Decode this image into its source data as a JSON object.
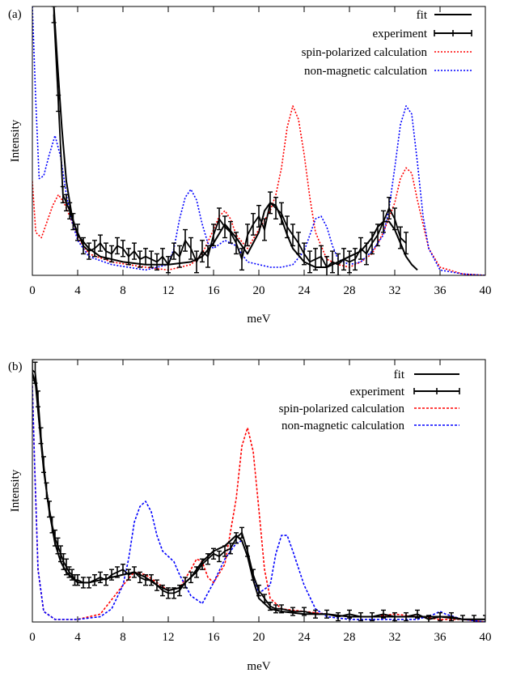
{
  "colors": {
    "fit": "#000000",
    "experiment": "#000000",
    "spin": "#ff0000",
    "nonmag": "#0000ff"
  },
  "chart_data": [
    {
      "type": "line",
      "panel_label": "(a)",
      "xlabel": "meV",
      "ylabel": "Intensity",
      "xlim": [
        0,
        40
      ],
      "ylim": [
        0,
        1
      ],
      "x_ticks": [
        "0",
        "4",
        "8",
        "12",
        "16",
        "20",
        "24",
        "28",
        "32",
        "36",
        "40"
      ],
      "y_ticks": [],
      "grid": false,
      "legend_position": "top-right",
      "series": [
        {
          "name": "fit",
          "style": "solid",
          "color": "#000000",
          "x": [
            1.9,
            2.2,
            2.6,
            3,
            3.5,
            4,
            5,
            6,
            8,
            10,
            12,
            14,
            15,
            16,
            17,
            18,
            19,
            20,
            20.5,
            21,
            21.5,
            22,
            22.5,
            23,
            24,
            25,
            26,
            27,
            28,
            29,
            30,
            30.5,
            31,
            31.5,
            32,
            32.5,
            33,
            33.5,
            34
          ],
          "y": [
            1.0,
            0.8,
            0.55,
            0.35,
            0.22,
            0.15,
            0.1,
            0.07,
            0.05,
            0.04,
            0.04,
            0.05,
            0.07,
            0.12,
            0.19,
            0.14,
            0.08,
            0.16,
            0.24,
            0.27,
            0.26,
            0.21,
            0.15,
            0.1,
            0.05,
            0.03,
            0.03,
            0.05,
            0.07,
            0.09,
            0.14,
            0.18,
            0.2,
            0.2,
            0.17,
            0.12,
            0.07,
            0.04,
            0.02
          ]
        },
        {
          "name": "experiment",
          "style": "errorbars",
          "color": "#000000",
          "x": [
            1.9,
            2.3,
            2.7,
            3.0,
            3.3,
            3.6,
            4.0,
            4.5,
            5.0,
            5.5,
            6.0,
            6.5,
            7.0,
            7.5,
            8.0,
            8.5,
            9.0,
            9.5,
            10.0,
            10.5,
            11.0,
            11.5,
            12.0,
            12.5,
            13.0,
            13.5,
            14.0,
            14.5,
            15.0,
            15.5,
            16.0,
            16.5,
            17.0,
            17.5,
            18.0,
            18.5,
            19.0,
            19.5,
            20.0,
            20.5,
            21.0,
            21.5,
            22.0,
            22.5,
            23.0,
            23.5,
            24.0,
            24.5,
            25.0,
            25.5,
            26.0,
            26.5,
            27.0,
            27.5,
            28.0,
            28.5,
            29.0,
            29.5,
            30.0,
            30.5,
            31.0,
            31.5,
            32.0,
            32.5,
            33.0
          ],
          "y": [
            0.97,
            0.64,
            0.3,
            0.27,
            0.24,
            0.2,
            0.16,
            0.11,
            0.09,
            0.1,
            0.12,
            0.09,
            0.08,
            0.11,
            0.1,
            0.07,
            0.09,
            0.06,
            0.07,
            0.06,
            0.05,
            0.07,
            0.04,
            0.09,
            0.07,
            0.13,
            0.1,
            0.05,
            0.09,
            0.07,
            0.15,
            0.21,
            0.18,
            0.16,
            0.12,
            0.06,
            0.15,
            0.19,
            0.22,
            0.17,
            0.27,
            0.25,
            0.23,
            0.18,
            0.15,
            0.12,
            0.08,
            0.05,
            0.06,
            0.07,
            0.03,
            0.05,
            0.04,
            0.06,
            0.05,
            0.06,
            0.1,
            0.08,
            0.12,
            0.15,
            0.2,
            0.25,
            0.21,
            0.14,
            0.12
          ],
          "err": [
            0.03,
            0.03,
            0.03,
            0.03,
            0.03,
            0.03,
            0.03,
            0.03,
            0.03,
            0.03,
            0.03,
            0.03,
            0.03,
            0.03,
            0.03,
            0.03,
            0.03,
            0.03,
            0.03,
            0.03,
            0.03,
            0.03,
            0.03,
            0.03,
            0.04,
            0.04,
            0.04,
            0.04,
            0.04,
            0.04,
            0.04,
            0.04,
            0.04,
            0.04,
            0.04,
            0.04,
            0.04,
            0.04,
            0.04,
            0.04,
            0.04,
            0.04,
            0.04,
            0.04,
            0.04,
            0.04,
            0.04,
            0.04,
            0.04,
            0.04,
            0.04,
            0.04,
            0.04,
            0.04,
            0.04,
            0.04,
            0.04,
            0.04,
            0.04,
            0.04,
            0.04,
            0.04,
            0.04,
            0.04,
            0.04
          ]
        },
        {
          "name": "spin-polarized calculation",
          "style": "dotted",
          "color": "#ff0000",
          "x": [
            0,
            0.3,
            0.8,
            1.3,
            1.8,
            2.3,
            2.8,
            3.3,
            4,
            5,
            7,
            10,
            12,
            14,
            15,
            16,
            16.5,
            17,
            17.5,
            18,
            19,
            20,
            21,
            21.5,
            22,
            22.5,
            23,
            23.5,
            24,
            24.5,
            25,
            26,
            27,
            28,
            29,
            30,
            31,
            32,
            32.5,
            33,
            33.5,
            34,
            35,
            36,
            38,
            40
          ],
          "y": [
            0.35,
            0.16,
            0.14,
            0.2,
            0.26,
            0.3,
            0.27,
            0.22,
            0.14,
            0.08,
            0.05,
            0.03,
            0.02,
            0.04,
            0.08,
            0.17,
            0.22,
            0.24,
            0.21,
            0.15,
            0.1,
            0.17,
            0.24,
            0.3,
            0.4,
            0.55,
            0.63,
            0.58,
            0.45,
            0.29,
            0.16,
            0.06,
            0.04,
            0.03,
            0.05,
            0.08,
            0.16,
            0.27,
            0.36,
            0.4,
            0.38,
            0.28,
            0.1,
            0.03,
            0.005,
            0
          ]
        },
        {
          "name": "non-magnetic calculation",
          "style": "dotted",
          "color": "#0000ff",
          "x": [
            0,
            0.3,
            0.6,
            1,
            1.5,
            2,
            2.5,
            3,
            3.5,
            4,
            5,
            7,
            10,
            12,
            12.5,
            13,
            13.5,
            14,
            14.5,
            15,
            15.5,
            16,
            17,
            18,
            19,
            20,
            21,
            22,
            23,
            24,
            24.5,
            25,
            25.5,
            26,
            26.5,
            27,
            28,
            29,
            30,
            31,
            31.5,
            32,
            32.5,
            33,
            33.5,
            34,
            34.5,
            35,
            36,
            38,
            40
          ],
          "y": [
            1.0,
            0.65,
            0.36,
            0.37,
            0.45,
            0.52,
            0.44,
            0.3,
            0.2,
            0.13,
            0.07,
            0.04,
            0.02,
            0.04,
            0.1,
            0.21,
            0.29,
            0.32,
            0.28,
            0.19,
            0.12,
            0.1,
            0.13,
            0.11,
            0.05,
            0.04,
            0.03,
            0.03,
            0.04,
            0.09,
            0.15,
            0.21,
            0.22,
            0.18,
            0.11,
            0.06,
            0.04,
            0.05,
            0.09,
            0.15,
            0.25,
            0.4,
            0.56,
            0.63,
            0.6,
            0.42,
            0.22,
            0.1,
            0.02,
            0.005,
            0
          ]
        }
      ]
    },
    {
      "type": "line",
      "panel_label": "(b)",
      "xlabel": "meV",
      "ylabel": "Intensity",
      "xlim": [
        0,
        40
      ],
      "ylim": [
        0,
        1
      ],
      "x_ticks": [
        "0",
        "4",
        "8",
        "12",
        "16",
        "20",
        "24",
        "28",
        "32",
        "36",
        "40"
      ],
      "y_ticks": [],
      "grid": false,
      "legend_position": "top-right",
      "series": [
        {
          "name": "fit",
          "style": "solid",
          "color": "#000000",
          "x": [
            0,
            0.3,
            0.6,
            1,
            1.5,
            2,
            2.5,
            3,
            4,
            5,
            6,
            7,
            8,
            9,
            10,
            11,
            12,
            13,
            14,
            15,
            16,
            17,
            17.5,
            18,
            18.5,
            19,
            19.5,
            20,
            21,
            22,
            24,
            26,
            28,
            30,
            32,
            34,
            36,
            38,
            40
          ],
          "y": [
            0.95,
            0.9,
            0.76,
            0.58,
            0.42,
            0.3,
            0.23,
            0.19,
            0.15,
            0.15,
            0.16,
            0.17,
            0.18,
            0.19,
            0.17,
            0.14,
            0.12,
            0.13,
            0.17,
            0.23,
            0.27,
            0.29,
            0.31,
            0.33,
            0.31,
            0.25,
            0.16,
            0.09,
            0.05,
            0.04,
            0.03,
            0.03,
            0.02,
            0.02,
            0.02,
            0.02,
            0.02,
            0.01,
            0.01
          ]
        },
        {
          "name": "experiment",
          "style": "errorbars",
          "color": "#000000",
          "x": [
            0.0,
            0.25,
            0.5,
            0.75,
            1.0,
            1.25,
            1.5,
            1.75,
            2.0,
            2.25,
            2.5,
            2.75,
            3.0,
            3.25,
            3.5,
            3.75,
            4.0,
            4.5,
            5.0,
            5.5,
            6.0,
            6.5,
            7.0,
            7.5,
            8.0,
            8.5,
            9.0,
            9.5,
            10.0,
            10.5,
            11.0,
            11.5,
            12.0,
            12.5,
            13.0,
            13.5,
            14.0,
            14.5,
            15.0,
            15.5,
            16.0,
            16.5,
            17.0,
            17.5,
            18.0,
            18.5,
            19.0,
            19.5,
            20.0,
            20.5,
            21.0,
            21.5,
            22.0,
            23.0,
            24.0,
            25.0,
            26.0,
            27.0,
            28.0,
            29.0,
            30.0,
            31.0,
            32.0,
            33.0,
            34.0,
            35.0,
            36.0,
            37.0,
            38.0,
            39.0,
            40.0
          ],
          "y": [
            0.96,
            0.95,
            0.85,
            0.71,
            0.6,
            0.5,
            0.43,
            0.37,
            0.32,
            0.29,
            0.26,
            0.23,
            0.21,
            0.19,
            0.18,
            0.16,
            0.16,
            0.15,
            0.15,
            0.16,
            0.17,
            0.16,
            0.18,
            0.19,
            0.2,
            0.18,
            0.19,
            0.17,
            0.16,
            0.16,
            0.14,
            0.12,
            0.11,
            0.11,
            0.12,
            0.15,
            0.17,
            0.19,
            0.22,
            0.24,
            0.26,
            0.25,
            0.27,
            0.28,
            0.32,
            0.34,
            0.27,
            0.18,
            0.12,
            0.09,
            0.06,
            0.05,
            0.05,
            0.04,
            0.04,
            0.03,
            0.03,
            0.02,
            0.03,
            0.02,
            0.02,
            0.03,
            0.02,
            0.02,
            0.03,
            0.01,
            0.02,
            0.02,
            0.01,
            0.01,
            0.01
          ],
          "err": [
            0.04,
            0.04,
            0.03,
            0.03,
            0.03,
            0.03,
            0.03,
            0.03,
            0.03,
            0.03,
            0.03,
            0.03,
            0.03,
            0.02,
            0.02,
            0.02,
            0.02,
            0.02,
            0.02,
            0.02,
            0.02,
            0.02,
            0.02,
            0.02,
            0.02,
            0.02,
            0.02,
            0.02,
            0.02,
            0.02,
            0.02,
            0.02,
            0.02,
            0.02,
            0.02,
            0.02,
            0.02,
            0.02,
            0.02,
            0.02,
            0.02,
            0.02,
            0.02,
            0.02,
            0.02,
            0.02,
            0.02,
            0.02,
            0.02,
            0.015,
            0.015,
            0.015,
            0.015,
            0.015,
            0.015,
            0.015,
            0.015,
            0.015,
            0.015,
            0.015,
            0.015,
            0.015,
            0.015,
            0.015,
            0.015,
            0.015,
            0.015,
            0.015,
            0.015,
            0.015,
            0.015
          ]
        },
        {
          "name": "spin-polarized calculation",
          "style": "dashed",
          "color": "#ff0000",
          "x": [
            0,
            0.2,
            0.5,
            1,
            2,
            4,
            6,
            8,
            9,
            10,
            11,
            12,
            13,
            14,
            14.5,
            15,
            15.5,
            16,
            17,
            18,
            18.5,
            19,
            19.5,
            20,
            20.5,
            21,
            22,
            24,
            26,
            28,
            30,
            32,
            34,
            36,
            38,
            40
          ],
          "y": [
            0.9,
            0.6,
            0.2,
            0.04,
            0.01,
            0.01,
            0.03,
            0.14,
            0.19,
            0.18,
            0.15,
            0.12,
            0.13,
            0.2,
            0.24,
            0.23,
            0.17,
            0.15,
            0.22,
            0.47,
            0.67,
            0.74,
            0.65,
            0.43,
            0.2,
            0.09,
            0.05,
            0.04,
            0.03,
            0.02,
            0.02,
            0.03,
            0.02,
            0.01,
            0.01,
            0
          ]
        },
        {
          "name": "non-magnetic calculation",
          "style": "dashed",
          "color": "#0000ff",
          "x": [
            0,
            0.2,
            0.5,
            1,
            2,
            4,
            6,
            7,
            8,
            8.5,
            9,
            9.5,
            10,
            10.5,
            11,
            11.5,
            12,
            12.5,
            13,
            14,
            15,
            16,
            17,
            18,
            18.5,
            19,
            20,
            21,
            21.5,
            22,
            22.5,
            23,
            24,
            25,
            26,
            28,
            30,
            32,
            34,
            35.5,
            36,
            36.5,
            38,
            40
          ],
          "y": [
            0.9,
            0.6,
            0.2,
            0.04,
            0.01,
            0.01,
            0.02,
            0.05,
            0.14,
            0.24,
            0.38,
            0.44,
            0.46,
            0.42,
            0.33,
            0.27,
            0.25,
            0.23,
            0.18,
            0.1,
            0.07,
            0.15,
            0.24,
            0.3,
            0.31,
            0.25,
            0.11,
            0.14,
            0.26,
            0.33,
            0.33,
            0.27,
            0.14,
            0.05,
            0.02,
            0.01,
            0.01,
            0.01,
            0.01,
            0.03,
            0.04,
            0.03,
            0.01,
            0
          ]
        }
      ]
    }
  ]
}
